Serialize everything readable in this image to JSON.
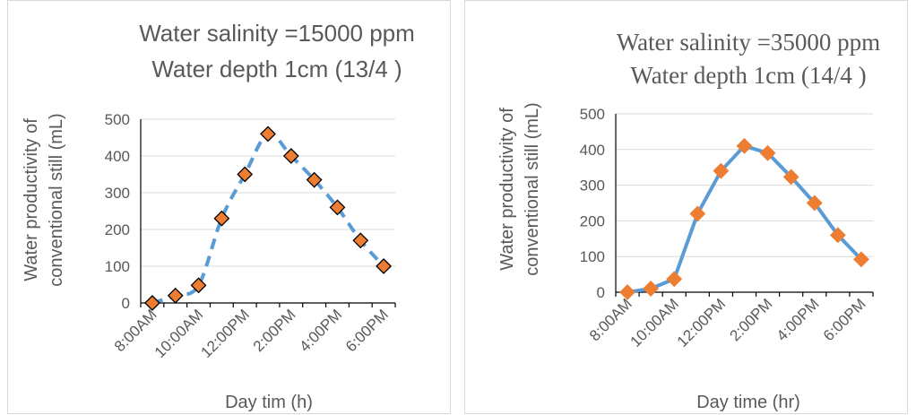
{
  "chart_data": [
    {
      "type": "line",
      "title_lines": [
        "Water salinity =15000 ppm",
        "Water depth 1cm (13/4 )"
      ],
      "xlabel": "Day tim (h)",
      "ylabel_lines": [
        "Water productivity of",
        "conventional still (mL)"
      ],
      "categories": [
        "8:00AM",
        "9:00AM",
        "10:00AM",
        "11:00AM",
        "12:00PM",
        "1:00PM",
        "2:00PM",
        "3:00PM",
        "4:00PM",
        "5:00PM",
        "6:00PM"
      ],
      "tick_labels": [
        "8:00AM",
        "10:00AM",
        "12:00PM",
        "2:00PM",
        "4:00PM",
        "6:00PM"
      ],
      "values": [
        0,
        20,
        48,
        230,
        350,
        460,
        400,
        335,
        260,
        170,
        100
      ],
      "ylim": [
        0,
        500
      ],
      "yticks": [
        0,
        100,
        200,
        300,
        400,
        500
      ],
      "line_style": "dashed",
      "line_color": "#5b9bd5",
      "marker_color": "#ed7d31",
      "marker_outline": "#000000",
      "grid": true
    },
    {
      "type": "line",
      "title_lines": [
        "Water salinity =35000 ppm",
        "Water depth 1cm (14/4 )"
      ],
      "xlabel": "Day time (hr)",
      "ylabel_lines": [
        "Water productivity of",
        "conventional still (mL)"
      ],
      "categories": [
        "8:00AM",
        "9:00AM",
        "10:00AM",
        "11:00AM",
        "12:00PM",
        "1:00PM",
        "2:00PM",
        "3:00PM",
        "4:00PM",
        "5:00PM",
        "6:00PM"
      ],
      "tick_labels": [
        "8:00AM",
        "10:00AM",
        "12:00PM",
        "2:00PM",
        "4:00PM",
        "6:00PM"
      ],
      "values": [
        0,
        10,
        37,
        220,
        340,
        410,
        390,
        323,
        250,
        160,
        92
      ],
      "ylim": [
        0,
        500
      ],
      "yticks": [
        0,
        100,
        200,
        300,
        400,
        500
      ],
      "line_style": "solid",
      "line_color": "#5b9bd5",
      "marker_color": "#ed7d31",
      "marker_outline": "#ed7d31",
      "grid": true
    }
  ]
}
